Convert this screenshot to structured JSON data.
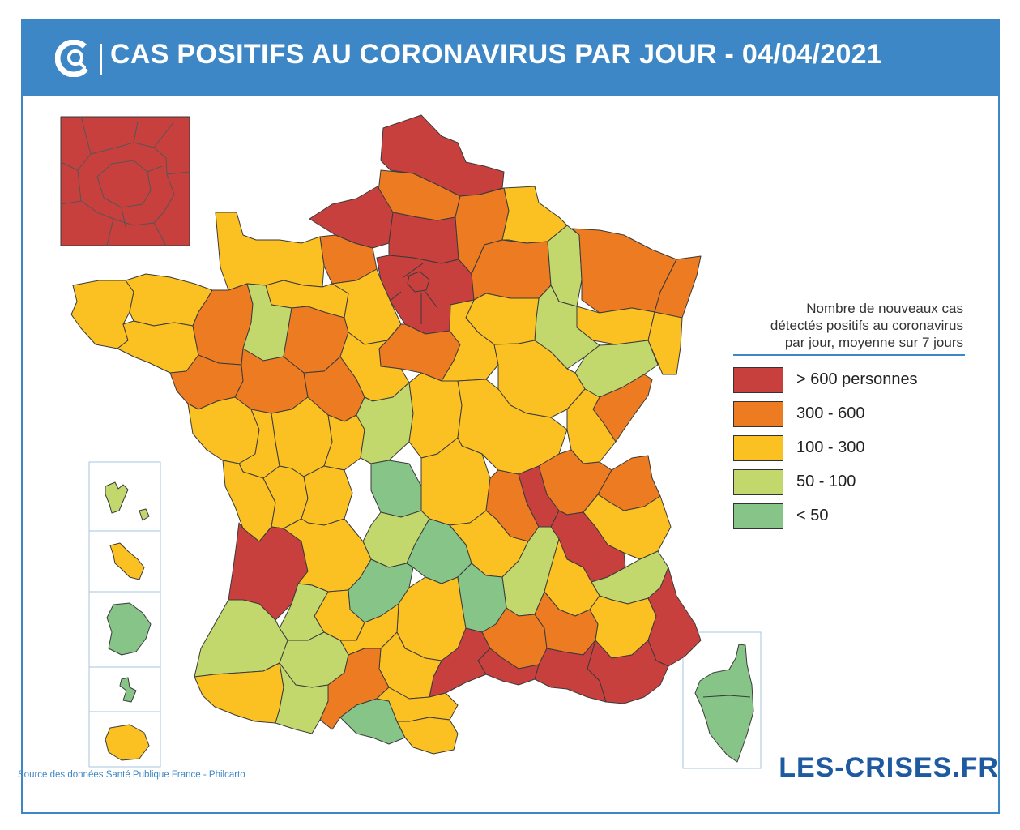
{
  "header": {
    "title": "CAS POSITIFS AU CORONAVIRUS PAR JOUR - 04/04/2021",
    "logo_icon": "les-crises-logo-icon"
  },
  "colors": {
    "brand_blue": "#3d87c7",
    "level_600_plus": "#c8403e",
    "level_300_600": "#ec7b22",
    "level_100_300": "#fbc122",
    "level_50_100": "#c2d86c",
    "level_under_50": "#86c488"
  },
  "legend": {
    "title_line1": "Nombre de nouveaux cas",
    "title_line2": "détectés positifs au coronavirus",
    "title_line3": "par jour, moyenne sur 7 jours",
    "items": [
      {
        "label": "> 600 personnes",
        "color": "#c8403e"
      },
      {
        "label": "300 - 600",
        "color": "#ec7b22"
      },
      {
        "label": "100 - 300",
        "color": "#fbc122"
      },
      {
        "label": "50 - 100",
        "color": "#c2d86c"
      },
      {
        "label": "< 50",
        "color": "#86c488"
      }
    ]
  },
  "footer": {
    "source": "Source des données Santé Publique France - Philcarto",
    "brand": "LES-CRISES.FR"
  }
}
